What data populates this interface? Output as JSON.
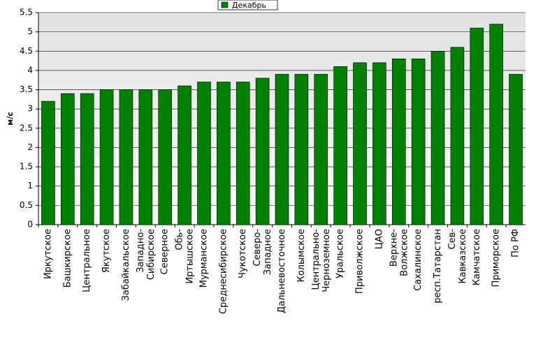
{
  "chart_data": {
    "type": "bar",
    "y_label": "м/с",
    "categories": [
      "Иркутское",
      "Башкирское",
      "Центральное",
      "Якутское",
      "Забайкальское",
      "Западно-\nСибирское",
      "Северное",
      "Обь-\nИртышское",
      "Мурманское",
      "Среднесибирское",
      "Чукотское",
      "Северо-\nЗападное",
      "Дальневосточное",
      "Колымское",
      "Центрально-\nЧерноземное",
      "Уральское",
      "Приволжское",
      "ЦАО",
      "Верхне-\nВолжское",
      "Сахалинское",
      "респ.Татарстан",
      "Сев-\nКавказское",
      "Камчатское",
      "Приморское",
      "По РФ"
    ],
    "series": [
      {
        "name": "Декабрь",
        "color": "#008000",
        "values": [
          3.2,
          3.4,
          3.4,
          3.5,
          3.5,
          3.5,
          3.5,
          3.6,
          3.7,
          3.7,
          3.7,
          3.8,
          3.9,
          3.9,
          3.9,
          4.1,
          4.2,
          4.2,
          4.3,
          4.3,
          4.5,
          4.6,
          5.1,
          5.2,
          3.9
        ]
      }
    ],
    "ylim": [
      0,
      5.5
    ],
    "yticks": [
      0,
      0.5,
      1,
      1.5,
      2,
      2.5,
      3,
      3.5,
      4,
      4.5,
      5,
      5.5
    ],
    "grid": true,
    "legend": "top"
  }
}
